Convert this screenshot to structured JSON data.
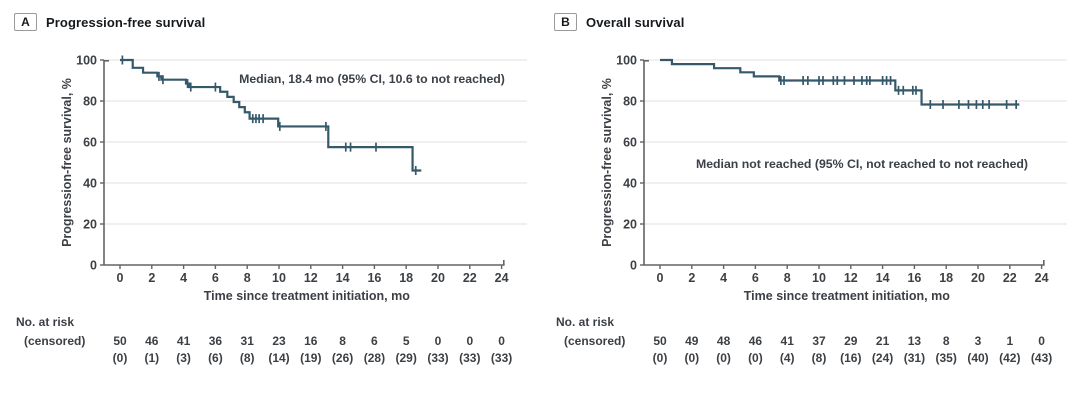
{
  "style": {
    "curve_color": "#35596B",
    "grid_color": "#E7E7E7",
    "axis_color": "#636363",
    "text_color": "#3C4045",
    "title_color": "#16191C"
  },
  "chart_data": [
    {
      "type": "line",
      "subtype": "kaplan-meier-step",
      "panel_letter": "A",
      "title": "Progression-free survival",
      "annotation": "Median, 18.4 mo (95% CI, 10.6 to not reached)",
      "annotation_pos": {
        "x": 372,
        "y": 43
      },
      "xlabel": "Time since treatment initiation, mo",
      "ylabel": "Progression-free survival, %",
      "xlim": [
        0,
        24
      ],
      "ylim": [
        0,
        100
      ],
      "x_ticks": [
        0,
        2,
        4,
        6,
        8,
        10,
        12,
        14,
        16,
        18,
        20,
        22,
        24
      ],
      "y_ticks": [
        0,
        20,
        40,
        60,
        80,
        100
      ],
      "grid": true,
      "km_start_level": 100,
      "km_steps": [
        [
          0.8,
          96.2
        ],
        [
          1.45,
          93.8
        ],
        [
          2.35,
          92
        ],
        [
          2.6,
          90.4
        ],
        [
          4.15,
          88.5
        ],
        [
          4.35,
          86.8
        ],
        [
          6.3,
          84.5
        ],
        [
          6.75,
          82
        ],
        [
          7.15,
          79.5
        ],
        [
          7.5,
          77
        ],
        [
          7.85,
          74.5
        ],
        [
          8.15,
          71.4
        ],
        [
          9.95,
          67.6
        ],
        [
          13.1,
          57.5
        ],
        [
          18.4,
          46.1
        ]
      ],
      "km_end_time": 18.95,
      "censor_marks": [
        [
          0.15,
          100
        ],
        [
          2.45,
          92
        ],
        [
          2.7,
          90.4
        ],
        [
          4.25,
          88.5
        ],
        [
          4.45,
          86.8
        ],
        [
          6.0,
          86.8
        ],
        [
          8.35,
          71.4
        ],
        [
          8.55,
          71.4
        ],
        [
          8.75,
          71.4
        ],
        [
          9.0,
          71.4
        ],
        [
          10.05,
          67.6
        ],
        [
          12.95,
          67.6
        ],
        [
          14.2,
          57.5
        ],
        [
          14.5,
          57.5
        ],
        [
          16.1,
          57.5
        ],
        [
          18.6,
          46.1
        ]
      ],
      "risk_label": "No. at risk",
      "censored_label": "(censored)",
      "at_risk": [
        50,
        46,
        41,
        36,
        31,
        23,
        16,
        8,
        6,
        5,
        0,
        0,
        0
      ],
      "censored": [
        "(0)",
        "(1)",
        "(3)",
        "(6)",
        "(8)",
        "(14)",
        "(19)",
        "(26)",
        "(28)",
        "(29)",
        "(33)",
        "(33)",
        "(33)"
      ]
    },
    {
      "type": "line",
      "subtype": "kaplan-meier-step",
      "panel_letter": "B",
      "title": "Overall survival",
      "annotation": "Median not reached (95% CI, not reached to not reached)",
      "annotation_pos": {
        "x": 322,
        "y": 128
      },
      "xlabel": "Time since treatment initiation, mo",
      "ylabel": "Progression-free survival, %",
      "xlim": [
        0,
        24
      ],
      "ylim": [
        0,
        100
      ],
      "x_ticks": [
        0,
        2,
        4,
        6,
        8,
        10,
        12,
        14,
        16,
        18,
        20,
        22,
        24
      ],
      "y_ticks": [
        0,
        20,
        40,
        60,
        80,
        100
      ],
      "grid": true,
      "km_start_level": 100,
      "km_steps": [
        [
          0.75,
          98
        ],
        [
          3.4,
          96
        ],
        [
          5.05,
          94
        ],
        [
          5.9,
          92
        ],
        [
          7.5,
          90
        ],
        [
          14.8,
          85.2
        ],
        [
          16.45,
          78.3
        ]
      ],
      "km_end_time": 22.6,
      "censor_marks": [
        [
          7.6,
          90
        ],
        [
          7.8,
          90
        ],
        [
          9.0,
          90
        ],
        [
          9.3,
          90
        ],
        [
          10.0,
          90
        ],
        [
          10.25,
          90
        ],
        [
          10.9,
          90
        ],
        [
          11.15,
          90
        ],
        [
          11.6,
          90
        ],
        [
          12.2,
          90
        ],
        [
          12.7,
          90
        ],
        [
          13.0,
          90
        ],
        [
          13.2,
          90
        ],
        [
          14.0,
          90
        ],
        [
          14.25,
          90
        ],
        [
          14.5,
          90
        ],
        [
          15.0,
          85.2
        ],
        [
          15.3,
          85.2
        ],
        [
          15.9,
          85.2
        ],
        [
          16.1,
          85.2
        ],
        [
          17.0,
          78.3
        ],
        [
          17.8,
          78.3
        ],
        [
          18.8,
          78.3
        ],
        [
          19.4,
          78.3
        ],
        [
          19.9,
          78.3
        ],
        [
          20.3,
          78.3
        ],
        [
          20.7,
          78.3
        ],
        [
          21.8,
          78.3
        ],
        [
          22.4,
          78.3
        ]
      ],
      "risk_label": "No. at risk",
      "censored_label": "(censored)",
      "at_risk": [
        50,
        49,
        48,
        46,
        41,
        37,
        29,
        21,
        13,
        8,
        3,
        1,
        0
      ],
      "censored": [
        "(0)",
        "(0)",
        "(0)",
        "(0)",
        "(4)",
        "(8)",
        "(16)",
        "(24)",
        "(31)",
        "(35)",
        "(40)",
        "(42)",
        "(43)"
      ]
    }
  ]
}
